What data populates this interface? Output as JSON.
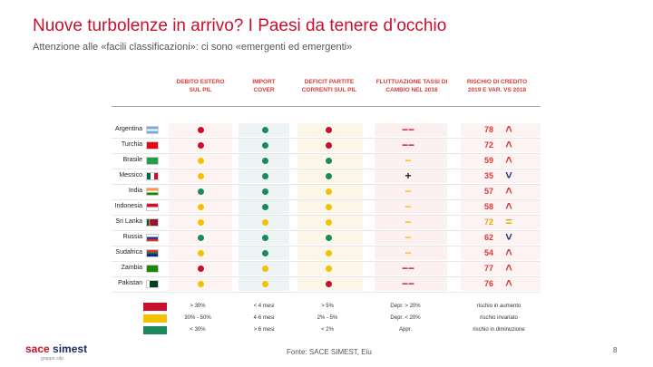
{
  "title": "Nuove turbolenze in arrivo? I Paesi da tenere d’occhio",
  "subtitle": "Attenzione alle «facili classificazioni»: ci sono «emergenti ed emergenti»",
  "colors": {
    "red": "#c8102e",
    "yellow": "#f2c200",
    "green": "#1a8a5a",
    "risk_red": "#d83a3a",
    "risk_yellow": "#e0a800",
    "risk_blue": "#1a3a6e"
  },
  "columns": [
    "DEBITO ESTERO SUL PIL",
    "IMPORT COVER",
    "DEFICIT PARTITE CORRENTI SUL PIL",
    "FLUTTUAZIONE TASSI DI CAMBIO NEL 2018",
    "RISCHIO DI CREDITO 2019 E VAR. vs 2018"
  ],
  "rows": [
    {
      "country": "Argentina",
      "debt": "red",
      "import": "green",
      "deficit": "red",
      "fx": "−−",
      "fx_color": "red",
      "risk": "78",
      "risk_color": "red",
      "trend": "up",
      "trend_symbol": "˄"
    },
    {
      "country": "Turchia",
      "debt": "red",
      "import": "green",
      "deficit": "red",
      "fx": "−−",
      "fx_color": "red",
      "risk": "72",
      "risk_color": "red",
      "trend": "up",
      "trend_symbol": "˄"
    },
    {
      "country": "Brasile",
      "debt": "yellow",
      "import": "green",
      "deficit": "green",
      "fx": "−",
      "fx_color": "yellow",
      "risk": "59",
      "risk_color": "red",
      "trend": "up",
      "trend_symbol": "˄"
    },
    {
      "country": "Messico",
      "debt": "yellow",
      "import": "green",
      "deficit": "green",
      "fx": "+",
      "fx_color": "green",
      "risk": "35",
      "risk_color": "red",
      "trend": "down",
      "trend_symbol": "˅"
    },
    {
      "country": "India",
      "debt": "green",
      "import": "green",
      "deficit": "yellow",
      "fx": "−",
      "fx_color": "yellow",
      "risk": "57",
      "risk_color": "red",
      "trend": "up",
      "trend_symbol": "˄"
    },
    {
      "country": "Indonesia",
      "debt": "yellow",
      "import": "green",
      "deficit": "yellow",
      "fx": "−",
      "fx_color": "yellow",
      "risk": "58",
      "risk_color": "red",
      "trend": "up",
      "trend_symbol": "˄"
    },
    {
      "country": "Sri Lanka",
      "debt": "yellow",
      "import": "yellow",
      "deficit": "yellow",
      "fx": "−",
      "fx_color": "yellow",
      "risk": "72",
      "risk_color": "yellow",
      "trend": "equal",
      "trend_symbol": "="
    },
    {
      "country": "Russia",
      "debt": "green",
      "import": "green",
      "deficit": "green",
      "fx": "−",
      "fx_color": "yellow",
      "risk": "62",
      "risk_color": "red",
      "trend": "down",
      "trend_symbol": "˅"
    },
    {
      "country": "Sudafrica",
      "debt": "yellow",
      "import": "green",
      "deficit": "yellow",
      "fx": "−",
      "fx_color": "yellow",
      "risk": "54",
      "risk_color": "red",
      "trend": "up",
      "trend_symbol": "˄"
    },
    {
      "country": "Zambia",
      "debt": "red",
      "import": "yellow",
      "deficit": "yellow",
      "fx": "−−",
      "fx_color": "red",
      "risk": "77",
      "risk_color": "red",
      "trend": "up",
      "trend_symbol": "˄"
    },
    {
      "country": "Pakistan",
      "debt": "yellow",
      "import": "yellow",
      "deficit": "red",
      "fx": "−−",
      "fx_color": "red",
      "risk": "76",
      "risk_color": "red",
      "trend": "up",
      "trend_symbol": "˄"
    }
  ],
  "legend": [
    {
      "debt": "> 30%",
      "import": "< 4 mesi",
      "deficit": "> 5%",
      "fx": "Depr. > 20%",
      "risk": "rischio in aumento"
    },
    {
      "debt": "30% - 50%",
      "import": "4-6 mesi",
      "deficit": "2% - 5%",
      "fx": "Depr. < 20%",
      "risk": "rischio invariato"
    },
    {
      "debt": "< 30%",
      "import": "> 6 mesi",
      "deficit": "< 2%",
      "fx": "Appr.",
      "risk": "rischio in diminuzione"
    }
  ],
  "footer": {
    "logo_a": "sace",
    "logo_b": " simest",
    "tagline": "gruppo cdp",
    "source": "Fonte: SACE SIMEST, Eiu",
    "page": "8"
  }
}
